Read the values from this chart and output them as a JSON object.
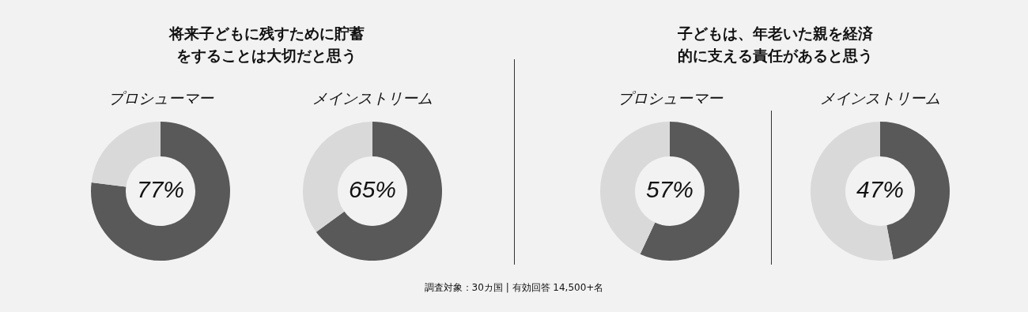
{
  "chart_data": [
    {
      "type": "donut",
      "title": "将来子どもに残すために貯蓄をすることは大切だと思う",
      "subtitle": "プロシューマー",
      "categories": [
        null,
        null
      ],
      "values": [
        77,
        23
      ],
      "colors": [
        "#595959",
        "#d9d9d9"
      ],
      "value_labels": [
        "77%",
        null
      ]
    },
    {
      "type": "donut",
      "subtitle": "メインストリーム",
      "categories": [
        null,
        null
      ],
      "values": [
        65,
        35
      ],
      "colors": [
        "#595959",
        "#d9d9d9"
      ],
      "value_labels": [
        "65%",
        null
      ]
    },
    {
      "type": "donut",
      "title": "子どもは、年老いた親を経済的に支える責任があると思う",
      "subtitle": "プロシューマー",
      "categories": [
        null,
        null
      ],
      "values": [
        57,
        43
      ],
      "colors": [
        "#595959",
        "#d9d9d9"
      ],
      "value_labels": [
        "57%",
        null
      ]
    },
    {
      "type": "donut",
      "subtitle": "メインストリーム",
      "categories": [
        null,
        null
      ],
      "values": [
        47,
        53
      ],
      "colors": [
        "#595959",
        "#d9d9d9"
      ],
      "value_labels": [
        "47%",
        null
      ],
      "annotations": [
        "調査対象：30カ国 | 有効回答 14,500+名"
      ]
    }
  ]
}
